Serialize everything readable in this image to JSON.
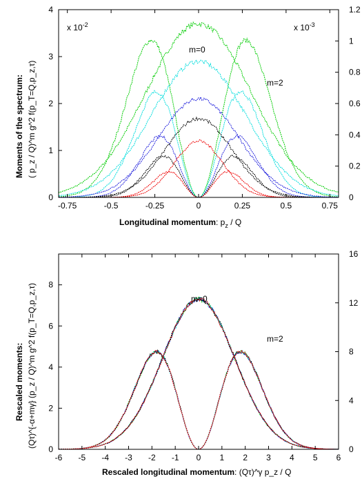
{
  "chart_data": [
    {
      "type": "line",
      "scale_left": "x 10",
      "scale_left_exp": "-2",
      "scale_right": "x 10",
      "scale_right_exp": "-3",
      "xlabel_bold": "Longitudinal momentum",
      "xlabel_var": "p",
      "xlabel_sub": "z",
      "xlabel_rest": " / Q",
      "ylabel_bold": "Moments of the spectrum",
      "ylabel_formula": "( p_z / Q)^m g^2 f(p_T=Q,p_z,τ)",
      "xlim": [
        -0.8,
        0.8
      ],
      "ylim": [
        0,
        4
      ],
      "y2lim": [
        0,
        1.2
      ],
      "x_ticks": [
        "-0.75",
        "-0.5",
        "-0.25",
        "0",
        "0.25",
        "0.5",
        "0.75"
      ],
      "y_ticks": [
        "0",
        "1",
        "2",
        "3",
        "4"
      ],
      "y2_ticks": [
        "0",
        "0.2",
        "0.4",
        "0.6",
        "0.8",
        "1",
        "1.2"
      ],
      "annotations": [
        "m=0",
        "m=2"
      ],
      "series": [
        {
          "color": "#00cc00",
          "m0": {
            "amp": 3.7,
            "width": 0.3
          },
          "m2": {
            "peak": 0.27,
            "amp": 3.35
          }
        },
        {
          "color": "#00dddd",
          "m0": {
            "amp": 2.9,
            "width": 0.27
          },
          "m2": {
            "peak": 0.24,
            "amp": 2.25
          }
        },
        {
          "color": "#2222dd",
          "m0": {
            "amp": 2.1,
            "width": 0.23
          },
          "m2": {
            "peak": 0.22,
            "amp": 1.3
          }
        },
        {
          "color": "#000000",
          "m0": {
            "amp": 1.68,
            "width": 0.19
          },
          "m2": {
            "peak": 0.2,
            "amp": 0.88
          }
        },
        {
          "color": "#ee0000",
          "m0": {
            "amp": 1.2,
            "width": 0.14
          },
          "m2": {
            "peak": 0.17,
            "amp": 0.55
          }
        }
      ]
    },
    {
      "type": "line",
      "xlabel_bold": "Rescaled longitudinal momentum",
      "xlabel_formula": "(Qτ)^γ p_z / Q",
      "ylabel_bold": "Rescaled moments:",
      "ylabel_formula": "(Qτ)^{-α+mγ} (p_z / Q)^m g^2 f(p_T=Q,p_z,τ)",
      "xlim": [
        -6,
        6
      ],
      "ylim": [
        0,
        9.5
      ],
      "y2lim": [
        0,
        16
      ],
      "x_ticks": [
        "-6",
        "-5",
        "-4",
        "-3",
        "-2",
        "-1",
        "0",
        "1",
        "2",
        "3",
        "4",
        "5",
        "6"
      ],
      "y_ticks": [
        "0",
        "2",
        "4",
        "6",
        "8"
      ],
      "y2_ticks": [
        "0",
        "4",
        "8",
        "12",
        "16"
      ],
      "annotations": [
        "m=0",
        "m=2"
      ],
      "m0": {
        "amp": 7.3,
        "width": 1.55
      },
      "m2": {
        "peak": 1.8,
        "amp": 4.75
      },
      "series_colors": [
        "#00cc00",
        "#00dddd",
        "#2222dd",
        "#000000",
        "#ee0000"
      ]
    }
  ]
}
